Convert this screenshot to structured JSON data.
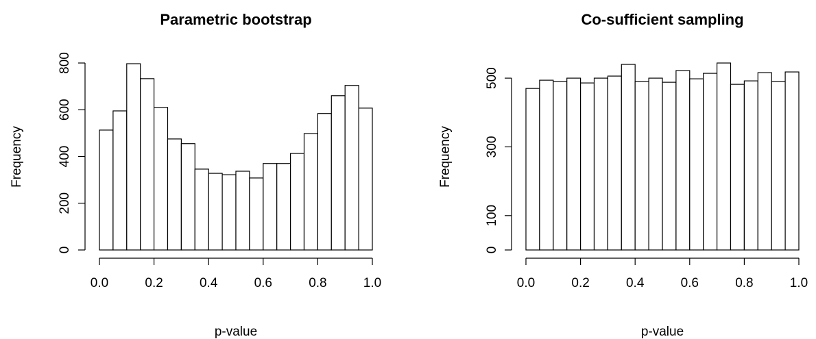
{
  "chart_data": [
    {
      "type": "histogram",
      "title": "Parametric bootstrap",
      "xlabel": "p-value",
      "ylabel": "Frequency",
      "bins": [
        0,
        0.05,
        0.1,
        0.15,
        0.2,
        0.25,
        0.3,
        0.35,
        0.4,
        0.45,
        0.5,
        0.55,
        0.6,
        0.65,
        0.7,
        0.75,
        0.8,
        0.85,
        0.9,
        0.95,
        1
      ],
      "values": [
        513,
        595,
        797,
        733,
        610,
        475,
        455,
        346,
        328,
        322,
        337,
        308,
        370,
        370,
        413,
        498,
        584,
        660,
        704,
        607
      ],
      "color": "#ffffff",
      "xlim": [
        0,
        1
      ],
      "xticks": [
        {
          "value": 0,
          "label": "0.0"
        },
        0.2,
        0.4,
        0.6,
        0.8,
        {
          "value": 1,
          "label": "1.0"
        }
      ],
      "ylim": [
        0,
        800
      ],
      "yticks": [
        0,
        200,
        400,
        600,
        800
      ]
    },
    {
      "type": "histogram",
      "title": "Co-sufficient sampling",
      "xlabel": "p-value",
      "ylabel": "Frequency",
      "bins": [
        0,
        0.05,
        0.1,
        0.15,
        0.2,
        0.25,
        0.3,
        0.35,
        0.4,
        0.45,
        0.5,
        0.55,
        0.6,
        0.65,
        0.7,
        0.75,
        0.8,
        0.85,
        0.9,
        0.95,
        1
      ],
      "values": [
        470,
        494,
        490,
        500,
        486,
        500,
        506,
        540,
        490,
        500,
        488,
        522,
        498,
        514,
        544,
        482,
        492,
        516,
        490,
        518
      ],
      "color": "#ffffff",
      "xlim": [
        0,
        1
      ],
      "xticks": [
        {
          "value": 0,
          "label": "0.0"
        },
        0.2,
        0.4,
        0.6,
        0.8,
        {
          "value": 1,
          "label": "1.0"
        }
      ],
      "ylim": [
        0,
        550
      ],
      "yticks": [
        0,
        100,
        300,
        500
      ]
    }
  ]
}
